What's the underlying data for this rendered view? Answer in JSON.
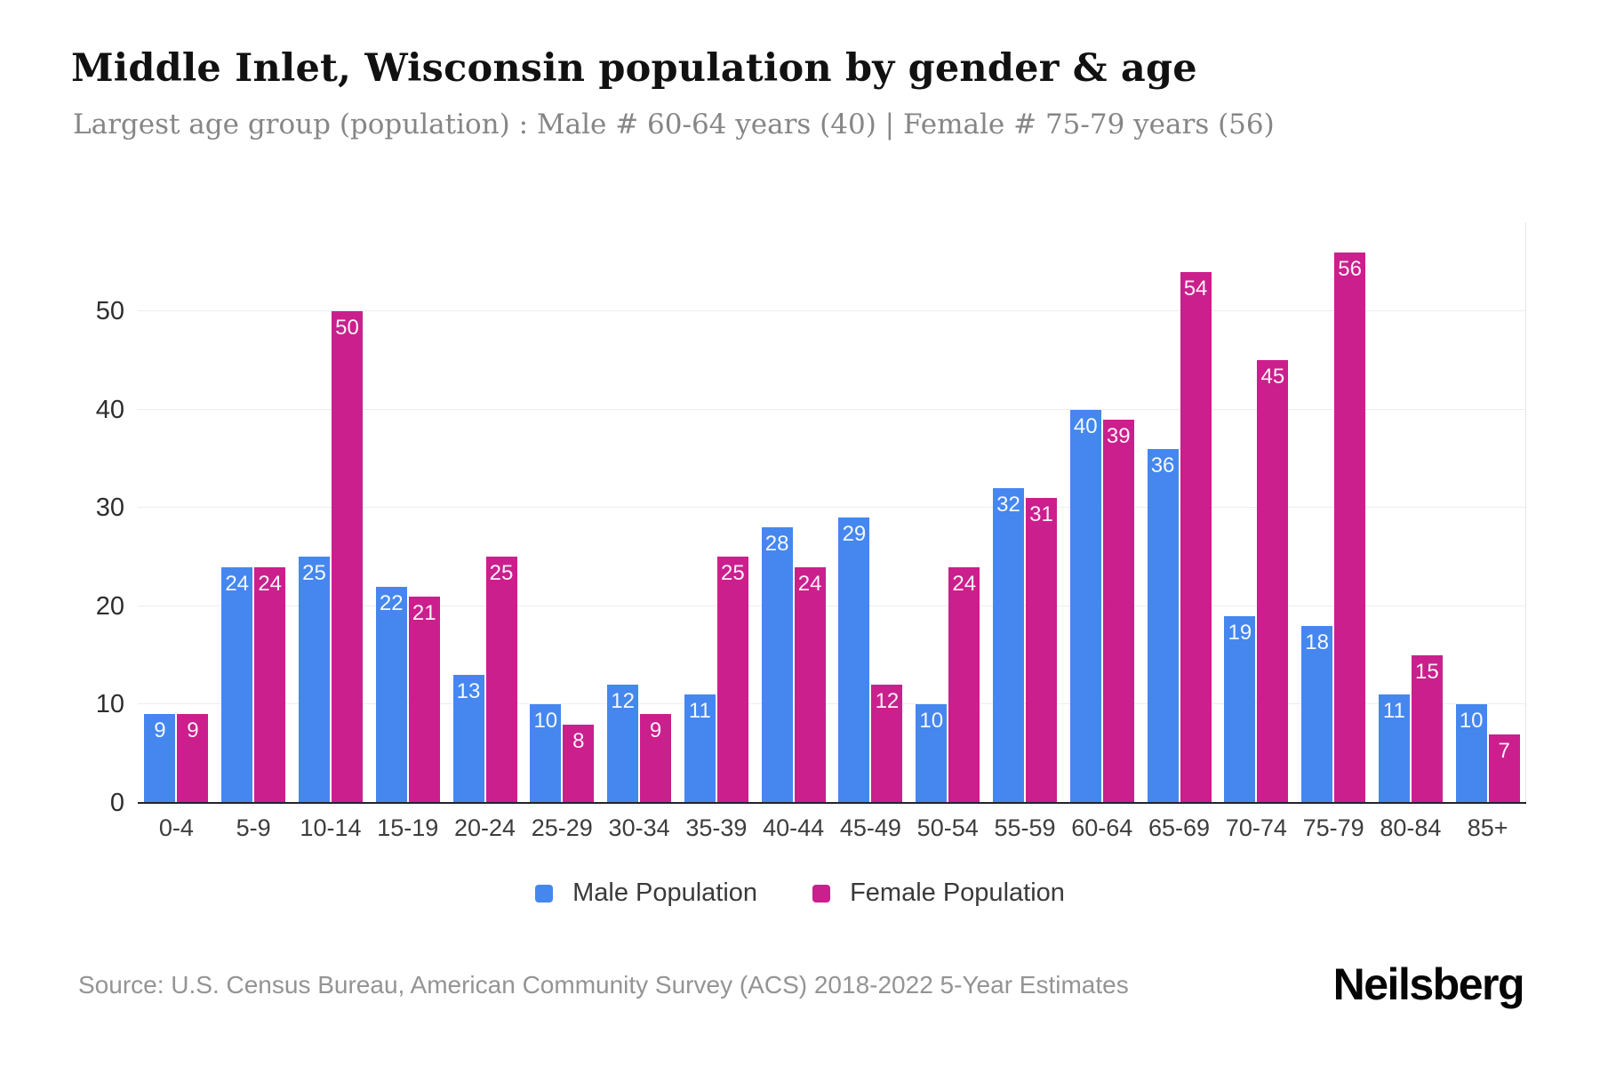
{
  "header": {
    "title": "Middle Inlet, Wisconsin population by gender & age",
    "subtitle": "Largest age group (population) : Male # 60-64 years (40) | Female # 75-79 years (56)"
  },
  "chart_data": {
    "type": "bar",
    "title": "Middle Inlet, Wisconsin population by gender & age",
    "subtitle": "Largest age group (population) : Male # 60-64 years (40) | Female # 75-79 years (56)",
    "categories": [
      "0-4",
      "5-9",
      "10-14",
      "15-19",
      "20-24",
      "25-29",
      "30-34",
      "35-39",
      "40-44",
      "45-49",
      "50-54",
      "55-59",
      "60-64",
      "65-69",
      "70-74",
      "75-79",
      "80-84",
      "85+"
    ],
    "series": [
      {
        "name": "Male Population",
        "color": "#4587ef",
        "values": [
          9,
          24,
          25,
          22,
          13,
          10,
          12,
          11,
          28,
          29,
          10,
          32,
          40,
          36,
          19,
          18,
          11,
          10
        ]
      },
      {
        "name": "Female Population",
        "color": "#cb1f8d",
        "values": [
          9,
          24,
          50,
          21,
          25,
          8,
          9,
          25,
          24,
          12,
          24,
          31,
          39,
          54,
          45,
          56,
          15,
          7
        ]
      }
    ],
    "xlabel": "",
    "ylabel": "",
    "ylim": [
      0,
      59
    ],
    "yticks": [
      0,
      10,
      20,
      30,
      40,
      50
    ],
    "grid": "horizontal",
    "legend_position": "bottom",
    "value_labels": "inside-top",
    "colors": {
      "male": "#4587ef",
      "female": "#cb1f8d",
      "gridline": "#ededed",
      "axis_line": "#23232e",
      "background": "#ffffff"
    }
  },
  "footer": {
    "source": "Source: U.S. Census Bureau, American Community Survey (ACS) 2018-2022 5-Year Estimates",
    "brand": "Neilsberg"
  }
}
